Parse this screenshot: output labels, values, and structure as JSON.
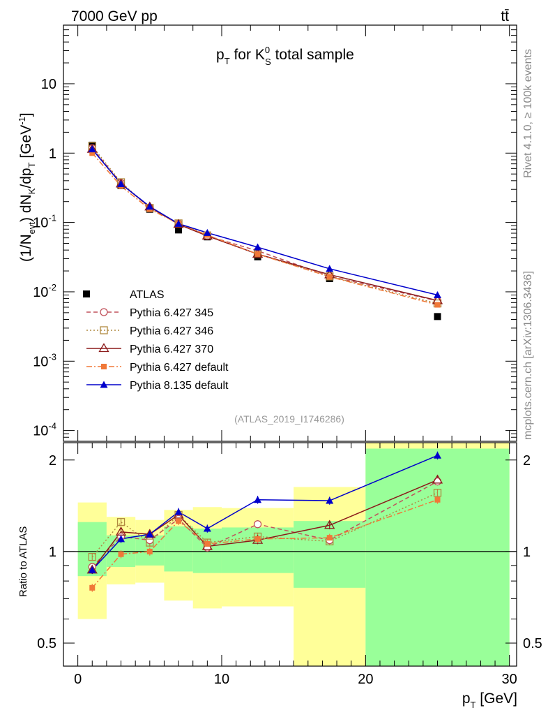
{
  "header": {
    "energy_label": "7000 GeV pp",
    "process_label": "tt̄"
  },
  "side": {
    "rivet": "Rivet 4.1.0, ≥ 100k events",
    "mcplots": "mcplots.cern.ch [arXiv:1306.3436]"
  },
  "main": {
    "title": {
      "p": "p",
      "T": "T",
      "for": " for K",
      "sup": "0",
      "sub": "S",
      "rest": " total sample"
    },
    "ylabel": {
      "a": "(1/N",
      "b": "evt",
      "c": ") dN",
      "d": "K",
      "e": "/dp",
      "f": "T",
      "g": " [GeV",
      "h": "-1",
      "i": "]"
    },
    "analysis_tag": "(ATLAS_2019_I1746286)"
  },
  "ratio": {
    "ylabel": "Ratio to ATLAS"
  },
  "xaxis": {
    "label_p": "p",
    "label_T": "T",
    "label_unit": " [GeV]"
  },
  "chart_data": [
    {
      "type": "line",
      "title": "pT for K0S total sample",
      "xlabel": "pT [GeV]",
      "ylabel": "(1/Nevt) dNK/dpT [GeV-1]",
      "xlim": [
        -1,
        30.5
      ],
      "ylim": [
        7e-05,
        70
      ],
      "yscale": "log",
      "ytick_values": [
        0.0001,
        0.001,
        0.01,
        0.1,
        1,
        10
      ],
      "ytick_labels": [
        {
          "base": "10",
          "exp": "-4"
        },
        {
          "base": "10",
          "exp": "-3"
        },
        {
          "base": "10",
          "exp": "-2"
        },
        {
          "base": "10",
          "exp": "-1"
        },
        {
          "base": "1",
          "exp": ""
        },
        {
          "base": "10",
          "exp": ""
        }
      ],
      "x": [
        1,
        3,
        5,
        7,
        9,
        12.5,
        17.5,
        25
      ],
      "data": {
        "name": "ATLAS",
        "values": [
          1.3,
          0.34,
          0.155,
          0.078,
          0.062,
          0.032,
          0.0155,
          0.0044
        ]
      },
      "series": [
        {
          "name": "Pythia 6.427 345",
          "color": "#c0505a",
          "dash": "6,4",
          "marker": "circle-open",
          "values": [
            1.18,
            0.37,
            0.163,
            0.096,
            0.064,
            0.039,
            0.0168,
            0.0074
          ]
        },
        {
          "name": "Pythia 6.427 346",
          "color": "#b08a40",
          "dash": "2,3",
          "marker": "square-open",
          "values": [
            1.26,
            0.38,
            0.162,
            0.097,
            0.065,
            0.035,
            0.0167,
            0.0068
          ]
        },
        {
          "name": "Pythia 6.427 370",
          "color": "#8b1a1a",
          "dash": "",
          "marker": "triangle-open",
          "values": [
            1.14,
            0.36,
            0.168,
            0.094,
            0.064,
            0.035,
            0.0177,
            0.0075
          ]
        },
        {
          "name": "Pythia 6.427 default",
          "color": "#f07838",
          "dash": "8,3,2,3",
          "marker": "square-filled",
          "values": [
            1.0,
            0.335,
            0.155,
            0.096,
            0.066,
            0.035,
            0.0165,
            0.0065
          ]
        },
        {
          "name": "Pythia 8.135 default",
          "color": "#0000cc",
          "dash": "",
          "marker": "triangle-filled",
          "values": [
            1.14,
            0.36,
            0.17,
            0.096,
            0.071,
            0.044,
            0.0215,
            0.009
          ]
        }
      ]
    },
    {
      "type": "line",
      "title": "Ratio to ATLAS",
      "ylabel": "Ratio to ATLAS",
      "xlim": [
        -1,
        30.5
      ],
      "ylim": [
        0.42,
        2.28
      ],
      "yscale": "log",
      "ytick_labels": [
        "0.5",
        "1",
        "2"
      ],
      "ytick_values": [
        0.5,
        1,
        2
      ],
      "xtick_values": [
        0,
        10,
        20,
        30
      ],
      "xtick_labels": [
        "0",
        "10",
        "20",
        "30"
      ],
      "x": [
        1,
        3,
        5,
        7,
        9,
        12.5,
        17.5,
        25
      ],
      "bands": [
        {
          "x0": 0,
          "x1": 2,
          "green": [
            0.83,
            1.25
          ],
          "yellow": [
            0.6,
            1.45
          ]
        },
        {
          "x0": 2,
          "x1": 4,
          "green": [
            0.89,
            1.13
          ],
          "yellow": [
            0.78,
            1.3
          ]
        },
        {
          "x0": 4,
          "x1": 6,
          "green": [
            0.9,
            1.13
          ],
          "yellow": [
            0.79,
            1.27
          ]
        },
        {
          "x0": 6,
          "x1": 8,
          "green": [
            0.86,
            1.21
          ],
          "yellow": [
            0.69,
            1.37
          ]
        },
        {
          "x0": 8,
          "x1": 10,
          "green": [
            0.85,
            1.19
          ],
          "yellow": [
            0.65,
            1.4
          ]
        },
        {
          "x0": 10,
          "x1": 15,
          "green": [
            0.85,
            1.2
          ],
          "yellow": [
            0.66,
            1.39
          ]
        },
        {
          "x0": 15,
          "x1": 20,
          "green": [
            0.76,
            1.26
          ],
          "yellow": [
            0.39,
            1.63
          ]
        },
        {
          "x0": 20,
          "x1": 30,
          "green": [
            0.42,
            2.18
          ],
          "yellow": [
            0.42,
            2.28
          ]
        }
      ],
      "series": [
        {
          "name": "Pythia 6.427 345",
          "values": [
            0.89,
            1.12,
            1.09,
            1.28,
            1.03,
            1.23,
            1.09,
            1.7
          ]
        },
        {
          "name": "Pythia 6.427 346",
          "values": [
            0.96,
            1.25,
            1.07,
            1.32,
            1.07,
            1.12,
            1.08,
            1.56
          ]
        },
        {
          "name": "Pythia 6.427 370",
          "values": [
            0.87,
            1.16,
            1.14,
            1.32,
            1.04,
            1.09,
            1.22,
            1.72
          ]
        },
        {
          "name": "Pythia 6.427 default",
          "values": [
            0.76,
            0.98,
            1.0,
            1.26,
            1.06,
            1.1,
            1.11,
            1.48
          ]
        },
        {
          "name": "Pythia 8.135 default",
          "values": [
            0.87,
            1.1,
            1.14,
            1.35,
            1.19,
            1.48,
            1.47,
            2.07
          ]
        }
      ]
    }
  ]
}
